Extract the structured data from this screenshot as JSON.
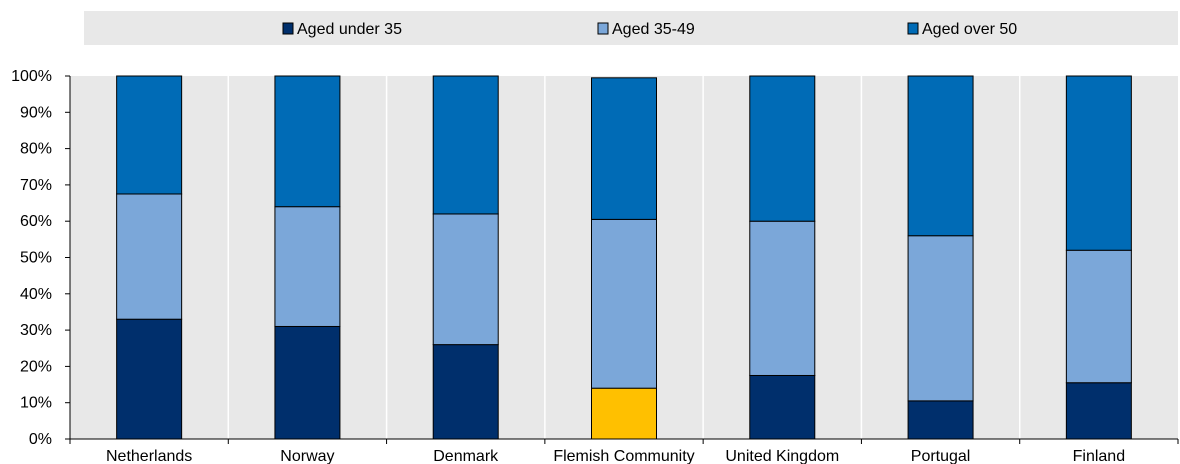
{
  "chart_data": {
    "type": "bar",
    "stacked": true,
    "title": "",
    "xlabel": "",
    "ylabel": "",
    "ylim": [
      0,
      100
    ],
    "yticks": [
      "0%",
      "10%",
      "20%",
      "30%",
      "40%",
      "50%",
      "60%",
      "70%",
      "80%",
      "90%",
      "100%"
    ],
    "grid": true,
    "legend_position": "top",
    "categories": [
      "Netherlands",
      "Norway",
      "Denmark",
      "Flemish Community",
      "United Kingdom",
      "Portugal",
      "Finland"
    ],
    "highlight_category": "Flemish Community",
    "highlight_color": "#FFC000",
    "series": [
      {
        "name": "Aged under 35",
        "color": "#002F6C",
        "values": [
          33,
          31,
          26,
          14,
          17.5,
          10.5,
          15.5
        ]
      },
      {
        "name": "Aged 35-49",
        "color": "#7BA7D9",
        "values": [
          34.5,
          33,
          36,
          46.5,
          42.5,
          45.5,
          36.5
        ]
      },
      {
        "name": "Aged over 50",
        "color": "#006BB6",
        "values": [
          32.5,
          36,
          38,
          39,
          40,
          44,
          48
        ]
      }
    ]
  }
}
